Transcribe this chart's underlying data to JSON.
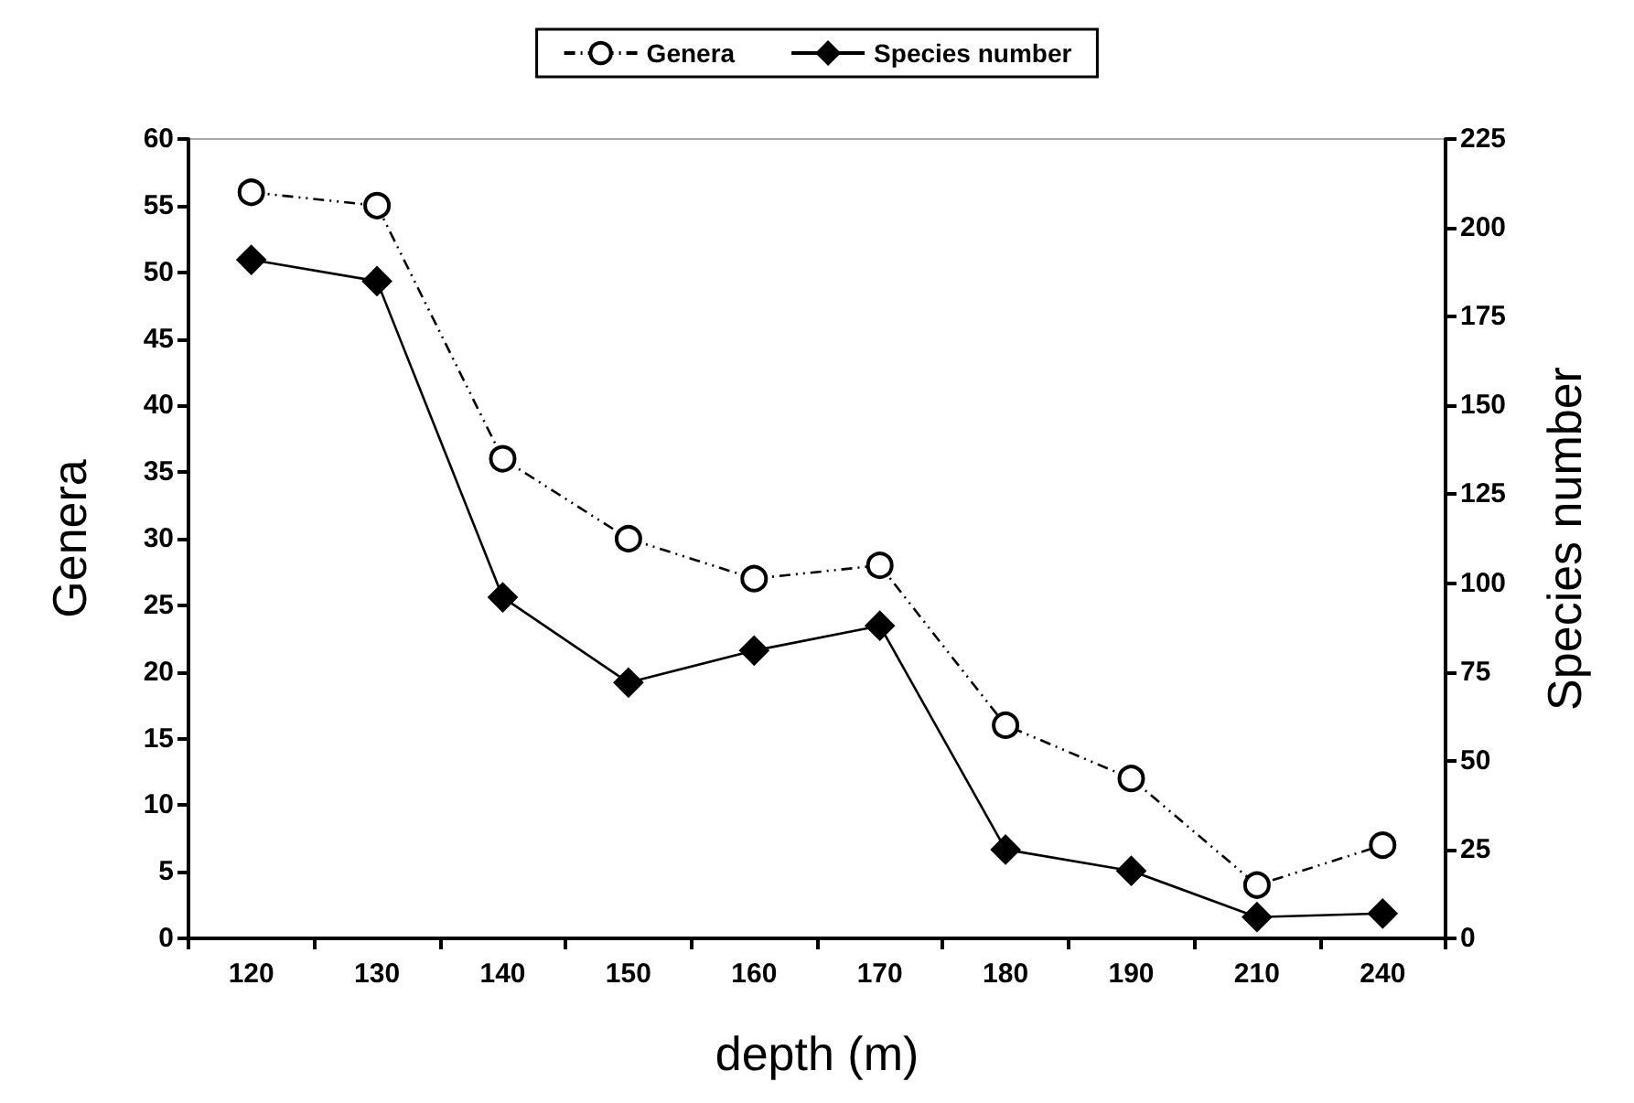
{
  "chart_data": {
    "type": "line",
    "xlabel": "depth (m)",
    "ylabel": "Genera",
    "y2label": "Species number",
    "categories": [
      "120",
      "130",
      "140",
      "150",
      "160",
      "170",
      "180",
      "190",
      "210",
      "240"
    ],
    "series": [
      {
        "name": "Genera",
        "color": "#000000",
        "marker": "circle",
        "line_style": "dashed",
        "values": [
          56,
          55,
          36,
          30,
          27,
          28,
          16,
          12,
          4,
          7
        ]
      },
      {
        "name": "Species number",
        "color": "#000000",
        "marker": "diamond",
        "line_style": "solid",
        "axis": "y2",
        "values": [
          191,
          185,
          96,
          72,
          81,
          88,
          25,
          19,
          6,
          7
        ]
      }
    ],
    "ylim": [
      0,
      60
    ],
    "yticks": [
      0,
      5,
      10,
      15,
      20,
      25,
      30,
      35,
      40,
      45,
      50,
      55,
      60
    ],
    "y2lim": [
      0,
      225
    ],
    "y2ticks": [
      0,
      25,
      50,
      75,
      100,
      125,
      150,
      175,
      200,
      225
    ],
    "grid": false,
    "legend": "top"
  }
}
